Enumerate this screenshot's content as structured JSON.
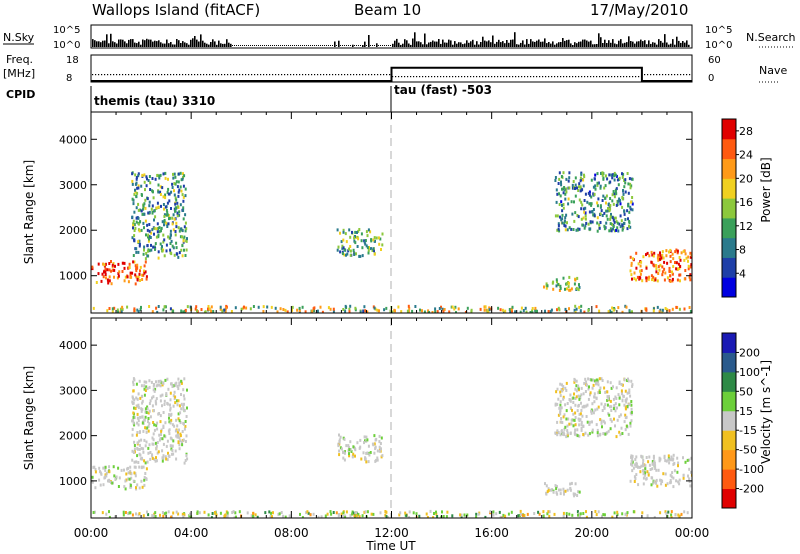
{
  "header": {
    "station": "Wallops Island (fitACF)",
    "beam": "Beam 10",
    "date": "17/May/2010"
  },
  "panel_labels": {
    "nsky": "N.Sky",
    "nsky_hi": "10^5",
    "nsky_lo": "10^0",
    "nsearch": "N.Search",
    "nsearch_hi": "10^5",
    "nsearch_lo": "10^0",
    "freq_line1": "Freq.",
    "freq_line2": "[MHz]",
    "freq_hi": "18",
    "freq_lo": "8",
    "nave": "Nave",
    "nave_hi": "60",
    "nave_lo": "0",
    "cpid": "CPID",
    "cpid_1": "themis (tau) 3310",
    "cpid_2": "tau (fast) -503"
  },
  "colors": {
    "power_scale": [
      "#0000e0",
      "#1e3fa8",
      "#2a7a8c",
      "#3aa05a",
      "#8cc83c",
      "#f0d020",
      "#ff9a18",
      "#ff5a10",
      "#e00000"
    ],
    "velocity_scale": [
      "#1a1ab4",
      "#2a5a8c",
      "#2e8a46",
      "#6ccf3a",
      "#c8c8c8",
      "#f0c020",
      "#ff9818",
      "#ff5a10",
      "#e00000"
    ],
    "ground_gray": "#c8c8c8"
  },
  "chart_data": [
    {
      "type": "heatmap",
      "title": "",
      "xlabel": "Time UT",
      "ylabel": "Slant Range [km]",
      "x_ticks": [
        "00:00",
        "04:00",
        "08:00",
        "12:00",
        "16:00",
        "20:00",
        "00:00"
      ],
      "xlim_hours": [
        0,
        24
      ],
      "y_ticks": [
        1000,
        2000,
        3000,
        4000
      ],
      "ylim_km": [
        180,
        4600
      ],
      "colorbar": {
        "label": "Power [dB]",
        "ticks": [
          4,
          8,
          12,
          16,
          20,
          24,
          28
        ],
        "range": [
          0,
          30
        ]
      },
      "echo_regions": [
        {
          "t_start": 0.0,
          "t_end": 2.2,
          "r_low": 850,
          "r_high": 1350,
          "power": 25
        },
        {
          "t_start": 1.6,
          "t_end": 3.8,
          "r_low": 1400,
          "r_high": 3300,
          "power": 11
        },
        {
          "t_start": 9.8,
          "t_end": 11.6,
          "r_low": 1450,
          "r_high": 2050,
          "power": 12
        },
        {
          "t_start": 18.5,
          "t_end": 21.6,
          "r_low": 2000,
          "r_high": 3300,
          "power": 10
        },
        {
          "t_start": 18.0,
          "t_end": 19.5,
          "r_low": 700,
          "r_high": 1000,
          "power": 16
        },
        {
          "t_start": 21.5,
          "t_end": 24.0,
          "r_low": 900,
          "r_high": 1600,
          "power": 24
        }
      ]
    },
    {
      "type": "heatmap",
      "title": "",
      "xlabel": "Time UT",
      "ylabel": "Slant Range [km]",
      "x_ticks": [
        "00:00",
        "04:00",
        "08:00",
        "12:00",
        "16:00",
        "20:00",
        "00:00"
      ],
      "xlim_hours": [
        0,
        24
      ],
      "y_ticks": [
        1000,
        2000,
        3000,
        4000
      ],
      "ylim_km": [
        180,
        4600
      ],
      "colorbar": {
        "label": "Velocity [m s^-1]",
        "ticks": [
          200,
          100,
          50,
          15,
          -15,
          -50,
          -100,
          -200
        ],
        "range": [
          -250,
          250
        ]
      },
      "echo_regions": [
        {
          "t_start": 0.0,
          "t_end": 2.2,
          "r_low": 850,
          "r_high": 1350,
          "velocity": 0
        },
        {
          "t_start": 1.6,
          "t_end": 3.8,
          "r_low": 1400,
          "r_high": 3300,
          "velocity": 0
        },
        {
          "t_start": 9.8,
          "t_end": 11.6,
          "r_low": 1450,
          "r_high": 2050,
          "velocity": 0
        },
        {
          "t_start": 18.5,
          "t_end": 21.6,
          "r_low": 2000,
          "r_high": 3300,
          "velocity": 0
        },
        {
          "t_start": 18.0,
          "t_end": 19.5,
          "r_low": 700,
          "r_high": 1000,
          "velocity": 0
        },
        {
          "t_start": 21.5,
          "t_end": 24.0,
          "r_low": 900,
          "r_high": 1600,
          "velocity": 0
        }
      ]
    }
  ],
  "frequency_mhz": [
    {
      "t_start": 0,
      "t_end": 12,
      "value": 8
    },
    {
      "t_start": 12,
      "t_end": 22,
      "value": 13.5
    },
    {
      "t_start": 22,
      "t_end": 24,
      "value": 8
    }
  ]
}
